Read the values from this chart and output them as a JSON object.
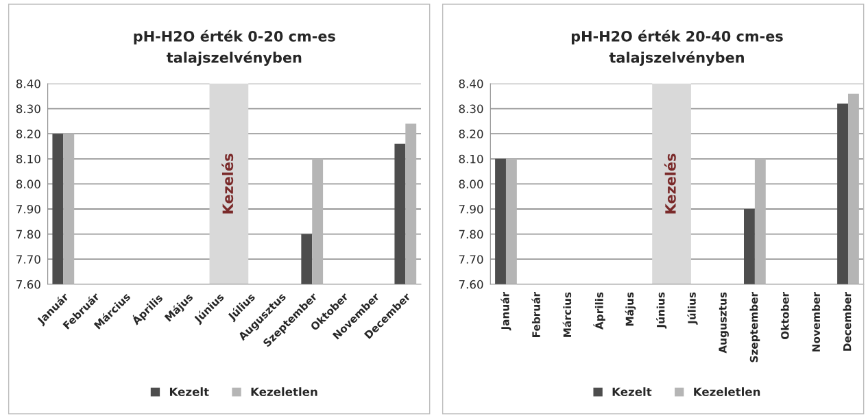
{
  "chart_data": [
    {
      "type": "bar",
      "title": "pH-H2O érték 0-20 cm-es\ntalajszelvényben",
      "categories": [
        "Január",
        "Február",
        "Március",
        "Április",
        "Május",
        "Június",
        "Július",
        "Augusztus",
        "Szeptember",
        "Oktober",
        "November",
        "December"
      ],
      "series": [
        {
          "name": "Kezelt",
          "color": "#4d4d4d",
          "values": [
            8.2,
            null,
            null,
            null,
            null,
            null,
            null,
            null,
            7.8,
            null,
            null,
            8.16
          ]
        },
        {
          "name": "Kezeletlen",
          "color": "#b5b5b5",
          "values": [
            8.2,
            null,
            null,
            null,
            null,
            null,
            null,
            null,
            8.1,
            null,
            null,
            8.24
          ]
        }
      ],
      "ylim": [
        7.6,
        8.4
      ],
      "yticks": [
        {
          "value": 7.6,
          "label": "7.60"
        },
        {
          "value": 7.7,
          "label": "7.70"
        },
        {
          "value": 7.8,
          "label": "7.80"
        },
        {
          "value": 7.9,
          "label": "7.90"
        },
        {
          "value": 8.0,
          "label": "8.00"
        },
        {
          "value": 8.1,
          "label": "8.10"
        },
        {
          "value": 8.2,
          "label": "8.20"
        },
        {
          "value": 8.3,
          "label": "8.30"
        },
        {
          "value": 8.4,
          "label": "8.40"
        }
      ],
      "bands": [
        {
          "axis": "x",
          "from": "Június",
          "to": "Július",
          "label": "Kezelés",
          "color": "#d9d9d9"
        }
      ],
      "grid": "y",
      "legend": "bottom"
    },
    {
      "type": "bar",
      "title": "pH-H2O érték 20-40 cm-es\ntalajszelvényben",
      "categories": [
        "Január",
        "Február",
        "Március",
        "Április",
        "Május",
        "Június",
        "Július",
        "Augusztus",
        "Szeptember",
        "Oktober",
        "November",
        "December"
      ],
      "series": [
        {
          "name": "Kezelt",
          "color": "#4d4d4d",
          "values": [
            8.1,
            null,
            null,
            null,
            null,
            null,
            null,
            null,
            7.9,
            null,
            null,
            8.32
          ]
        },
        {
          "name": "Kezeletlen",
          "color": "#b5b5b5",
          "values": [
            8.1,
            null,
            null,
            null,
            null,
            null,
            null,
            null,
            8.1,
            null,
            null,
            8.36
          ]
        }
      ],
      "ylim": [
        7.6,
        8.4
      ],
      "yticks": [
        {
          "value": 7.6,
          "label": "7.60"
        },
        {
          "value": 7.7,
          "label": "7.70"
        },
        {
          "value": 7.8,
          "label": "7.80"
        },
        {
          "value": 7.9,
          "label": "7.90"
        },
        {
          "value": 8.0,
          "label": "8.00"
        },
        {
          "value": 8.1,
          "label": "8.10"
        },
        {
          "value": 8.2,
          "label": "8.20"
        },
        {
          "value": 8.3,
          "label": "8.30"
        },
        {
          "value": 8.4,
          "label": "8.40"
        }
      ],
      "bands": [
        {
          "axis": "x",
          "from": "Június",
          "to": "Július",
          "label": "Kezelés",
          "color": "#d9d9d9"
        }
      ],
      "grid": "y",
      "legend": "bottom"
    }
  ]
}
